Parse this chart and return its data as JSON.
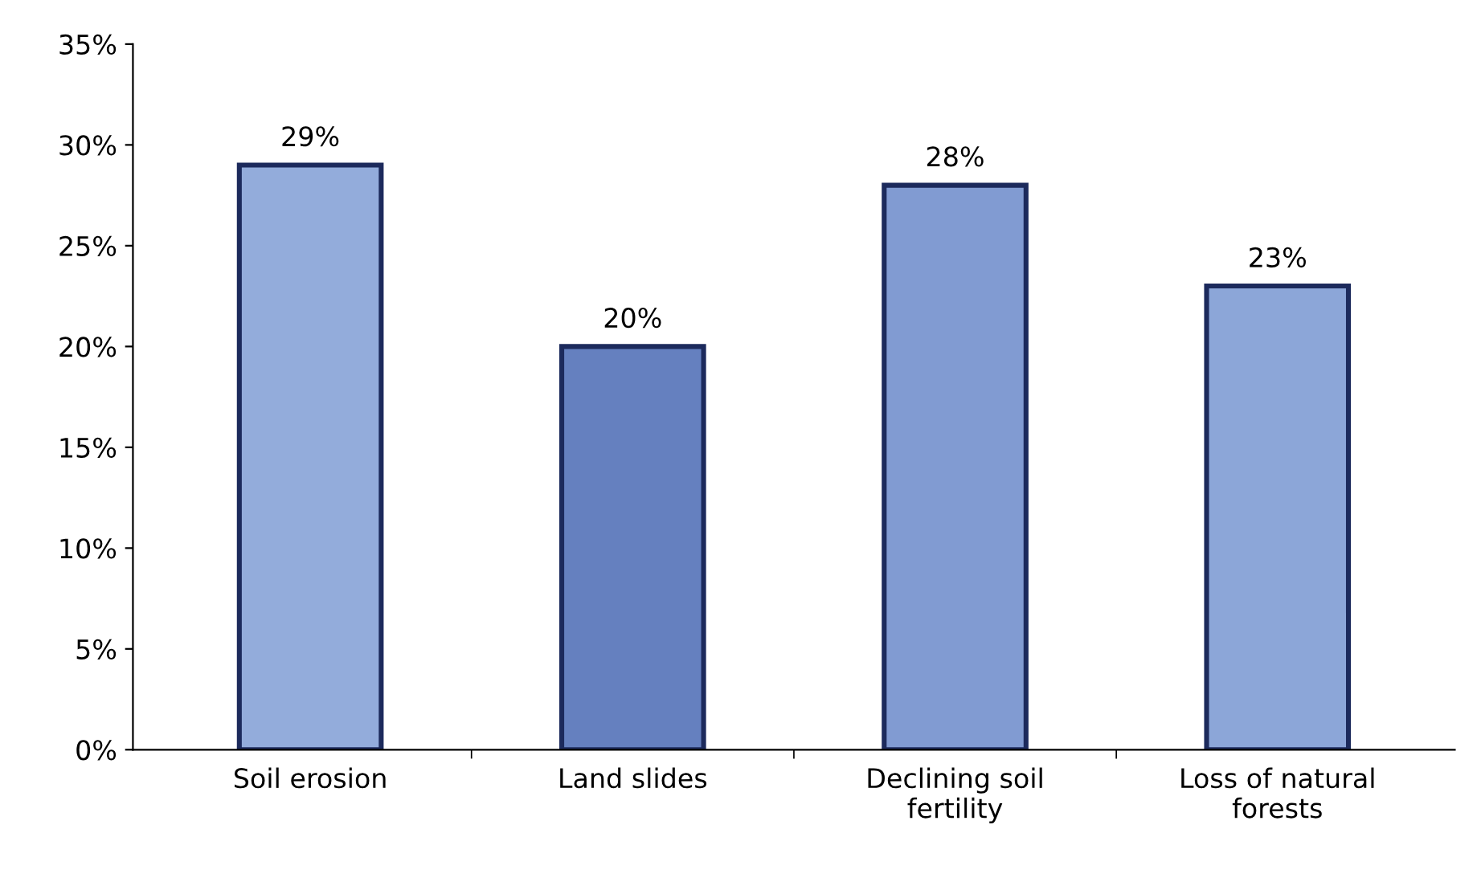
{
  "chart_data": {
    "type": "bar",
    "categories": [
      "Soil erosion",
      "Land slides",
      "Declining soil\nfertility",
      "Loss of natural\nforests"
    ],
    "values": [
      29,
      20,
      28,
      23
    ],
    "colors": [
      "#93acdb",
      "#6580bf",
      "#819bd2",
      "#8ca6d8"
    ],
    "ylim": [
      0,
      35
    ],
    "yticks": [
      {
        "value": 0,
        "label": "0%"
      },
      {
        "value": 5,
        "label": "5%"
      },
      {
        "value": 10,
        "label": "10%"
      },
      {
        "value": 15,
        "label": "15%"
      },
      {
        "value": 20,
        "label": "20%"
      },
      {
        "value": 25,
        "label": "25%"
      },
      {
        "value": 30,
        "label": "30%"
      },
      {
        "value": 35,
        "label": "35%"
      }
    ],
    "value_labels": [
      "29%",
      "20%",
      "28%",
      "23%"
    ],
    "grid": false,
    "legend": false
  }
}
